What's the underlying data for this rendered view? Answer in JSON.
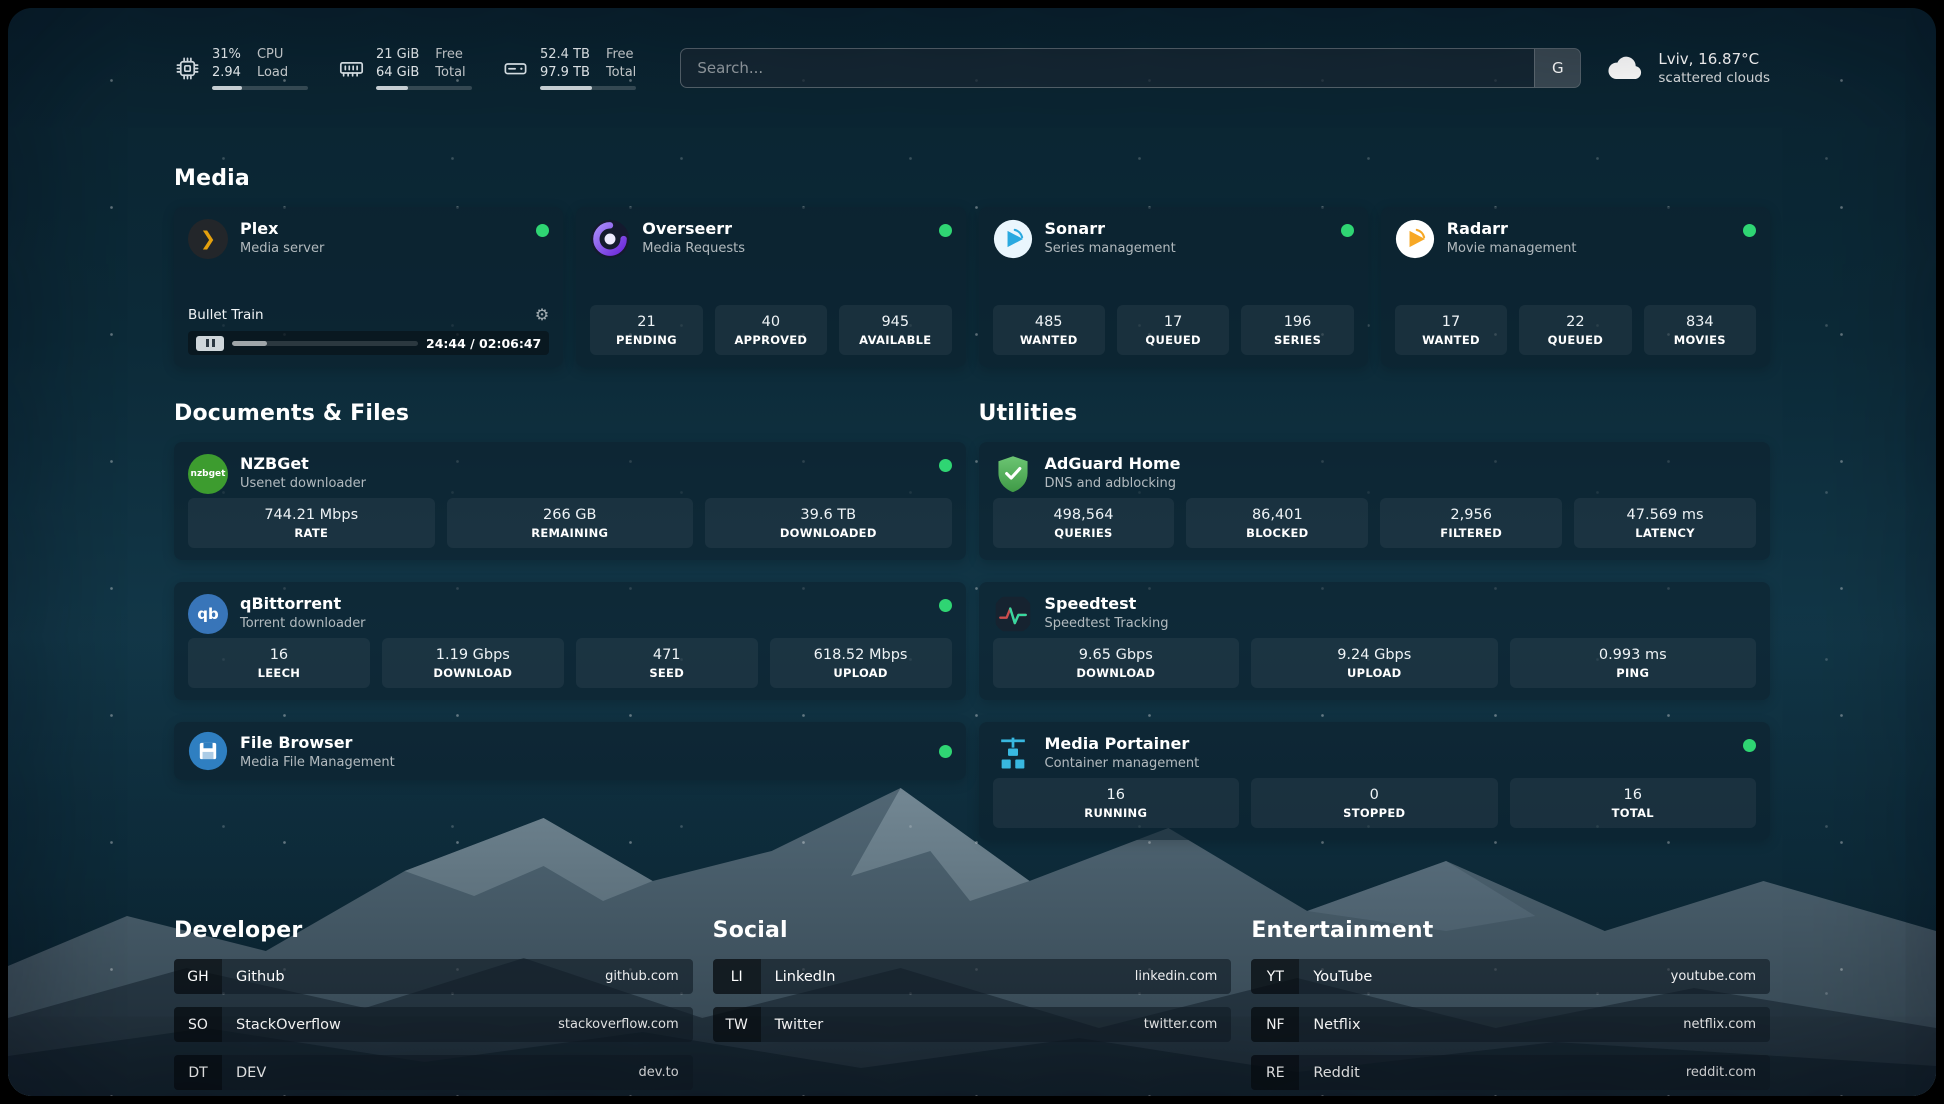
{
  "header": {
    "cpu": {
      "icon": "cpu-chip-icon",
      "value_top": "31%",
      "value_bottom": "2.94",
      "label_top": "CPU",
      "label_bottom": "Load",
      "bar_percent": 31
    },
    "ram": {
      "icon": "memory-icon",
      "value_top": "21 GiB",
      "value_bottom": "64 GiB",
      "label_top": "Free",
      "label_bottom": "Total",
      "bar_percent": 33
    },
    "disk": {
      "icon": "disk-icon",
      "value_top": "52.4 TB",
      "value_bottom": "97.9 TB",
      "label_top": "Free",
      "label_bottom": "Total",
      "bar_percent": 54
    },
    "search": {
      "placeholder": "Search...",
      "engine_label": "G"
    },
    "weather": {
      "icon": "cloud-icon",
      "location_temp": "Lviv, 16.87°C",
      "condition": "scattered clouds"
    }
  },
  "media": {
    "title": "Media",
    "cards": [
      {
        "title": "Plex",
        "subtitle": "Media server",
        "online": true,
        "player": {
          "track": "Bullet Train",
          "time": "24:44 / 02:06:47",
          "progress_percent": 19,
          "state": "paused"
        }
      },
      {
        "title": "Overseerr",
        "subtitle": "Media Requests",
        "online": true,
        "stats": [
          {
            "value": "21",
            "label": "PENDING"
          },
          {
            "value": "40",
            "label": "APPROVED"
          },
          {
            "value": "945",
            "label": "AVAILABLE"
          }
        ]
      },
      {
        "title": "Sonarr",
        "subtitle": "Series management",
        "online": true,
        "stats": [
          {
            "value": "485",
            "label": "WANTED"
          },
          {
            "value": "17",
            "label": "QUEUED"
          },
          {
            "value": "196",
            "label": "SERIES"
          }
        ]
      },
      {
        "title": "Radarr",
        "subtitle": "Movie management",
        "online": true,
        "stats": [
          {
            "value": "17",
            "label": "WANTED"
          },
          {
            "value": "22",
            "label": "QUEUED"
          },
          {
            "value": "834",
            "label": "MOVIES"
          }
        ]
      }
    ]
  },
  "documents": {
    "title": "Documents & Files",
    "cards": [
      {
        "title": "NZBGet",
        "subtitle": "Usenet downloader",
        "online": true,
        "stats": [
          {
            "value": "744.21 Mbps",
            "label": "RATE"
          },
          {
            "value": "266 GB",
            "label": "REMAINING"
          },
          {
            "value": "39.6 TB",
            "label": "DOWNLOADED"
          }
        ]
      },
      {
        "title": "qBittorrent",
        "subtitle": "Torrent downloader",
        "online": true,
        "stats": [
          {
            "value": "16",
            "label": "LEECH"
          },
          {
            "value": "1.19 Gbps",
            "label": "DOWNLOAD"
          },
          {
            "value": "471",
            "label": "SEED"
          },
          {
            "value": "618.52 Mbps",
            "label": "UPLOAD"
          }
        ]
      },
      {
        "title": "File Browser",
        "subtitle": "Media File Management",
        "online": true
      }
    ]
  },
  "utilities": {
    "title": "Utilities",
    "cards": [
      {
        "title": "AdGuard Home",
        "subtitle": "DNS and adblocking",
        "stats": [
          {
            "value": "498,564",
            "label": "QUERIES"
          },
          {
            "value": "86,401",
            "label": "BLOCKED"
          },
          {
            "value": "2,956",
            "label": "FILTERED"
          },
          {
            "value": "47.569 ms",
            "label": "LATENCY"
          }
        ]
      },
      {
        "title": "Speedtest",
        "subtitle": "Speedtest Tracking",
        "stats": [
          {
            "value": "9.65 Gbps",
            "label": "DOWNLOAD"
          },
          {
            "value": "9.24 Gbps",
            "label": "UPLOAD"
          },
          {
            "value": "0.993 ms",
            "label": "PING"
          }
        ]
      },
      {
        "title": "Media Portainer",
        "subtitle": "Container management",
        "online": true,
        "stats": [
          {
            "value": "16",
            "label": "RUNNING"
          },
          {
            "value": "0",
            "label": "STOPPED"
          },
          {
            "value": "16",
            "label": "TOTAL"
          }
        ]
      }
    ]
  },
  "bookmarks": [
    {
      "title": "Developer",
      "items": [
        {
          "abbr": "GH",
          "name": "Github",
          "url": "github.com"
        },
        {
          "abbr": "SO",
          "name": "StackOverflow",
          "url": "stackoverflow.com"
        },
        {
          "abbr": "DT",
          "name": "DEV",
          "url": "dev.to"
        }
      ]
    },
    {
      "title": "Social",
      "items": [
        {
          "abbr": "LI",
          "name": "LinkedIn",
          "url": "linkedin.com"
        },
        {
          "abbr": "TW",
          "name": "Twitter",
          "url": "twitter.com"
        }
      ]
    },
    {
      "title": "Entertainment",
      "items": [
        {
          "abbr": "YT",
          "name": "YouTube",
          "url": "youtube.com"
        },
        {
          "abbr": "NF",
          "name": "Netflix",
          "url": "netflix.com"
        },
        {
          "abbr": "RE",
          "name": "Reddit",
          "url": "reddit.com"
        }
      ]
    }
  ],
  "icons": {
    "plex_glyph": "❯",
    "nzbget_text": "nzbget",
    "qbittorrent_text": "qb",
    "gear": "⚙"
  },
  "colors": {
    "status_online": "#2fd573",
    "plex_accent": "#e5a00d",
    "background_tint": "#0c2a38"
  }
}
